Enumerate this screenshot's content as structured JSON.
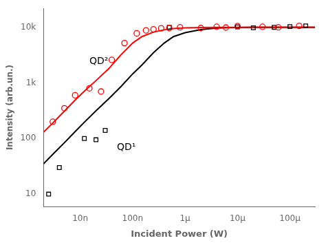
{
  "chart_data": {
    "type": "scatter",
    "log": true,
    "grid": false,
    "x_label": "Incident Power (W)",
    "y_label": "Intensity (arb.un.)",
    "xlim": [
      2e-09,
      0.0003
    ],
    "ylim": [
      6,
      22000
    ],
    "xticks": [
      {
        "value": 1e-08,
        "label": "10n"
      },
      {
        "value": 1e-07,
        "label": "100n"
      },
      {
        "value": 1e-06,
        "label": "1μ"
      },
      {
        "value": 1e-05,
        "label": "10μ"
      },
      {
        "value": 0.0001,
        "label": "100μ"
      }
    ],
    "yticks": [
      10,
      100,
      {
        "value": 1000,
        "label": "1k"
      },
      {
        "value": 10000,
        "label": "10k"
      }
    ],
    "series": [
      {
        "type": "line",
        "color": "red",
        "line_style": "solid",
        "x": [
          2e-09,
          3e-09,
          5e-09,
          8e-09,
          1.2e-08,
          2e-08,
          3.5e-08,
          6e-08,
          1e-07,
          1.5e-07,
          2.5e-07,
          4e-07,
          6e-07,
          1e-06,
          2e-06,
          4e-06,
          8e-06,
          2e-05,
          5e-05,
          0.0001,
          0.0002,
          0.0003
        ],
        "values": [
          130,
          190,
          310,
          490,
          710,
          1100,
          1800,
          3200,
          5200,
          6800,
          8200,
          9000,
          9500,
          9750,
          9900,
          9970,
          10000,
          10020,
          10030,
          10035,
          10038,
          10040
        ]
      },
      {
        "type": "line",
        "color": "black",
        "line_style": "solid",
        "x": [
          2e-09,
          3e-09,
          5e-09,
          8e-09,
          1.2e-08,
          2e-08,
          3.5e-08,
          6e-08,
          1e-07,
          1.5e-07,
          2.5e-07,
          4e-07,
          6e-07,
          1e-06,
          2e-06,
          4e-06,
          8e-06,
          2e-05,
          5e-05,
          0.0001,
          0.0002,
          0.0003
        ],
        "values": [
          35,
          52,
          84,
          133,
          196,
          315,
          520,
          860,
          1450,
          2100,
          3500,
          5200,
          6800,
          8000,
          9100,
          9700,
          9900,
          9980,
          9998,
          10005,
          10010,
          10010
        ]
      },
      {
        "type": "scatter",
        "color": "red",
        "marker": "circle",
        "x": [
          3e-09,
          5e-09,
          8e-09,
          1.5e-08,
          2.5e-08,
          4e-08,
          7e-08,
          1.2e-07,
          1.8e-07,
          2.5e-07,
          3.5e-07,
          5e-07,
          8e-07,
          2e-06,
          4e-06,
          6e-06,
          1e-05,
          3e-05,
          6e-05,
          0.00015
        ],
        "values": [
          200,
          350,
          600,
          800,
          700,
          2600,
          5200,
          7800,
          8800,
          9200,
          9600,
          9700,
          10000,
          9700,
          10200,
          9900,
          10500,
          10200,
          10000,
          10600
        ]
      },
      {
        "type": "scatter",
        "color": "black",
        "marker": "square",
        "x": [
          2.5e-09,
          4e-09,
          1.2e-08,
          2e-08,
          3e-08,
          5e-07,
          1e-05,
          2e-05,
          5e-05,
          0.0001,
          0.0002
        ],
        "values": [
          10,
          30,
          100,
          95,
          140,
          10000,
          10200,
          9800,
          10000,
          10300,
          10600
        ]
      }
    ],
    "annotations": [
      {
        "text": "QD²",
        "x": 1.5e-08,
        "y": 2200
      },
      {
        "text": "QD¹",
        "x": 5e-08,
        "y": 62
      }
    ]
  }
}
